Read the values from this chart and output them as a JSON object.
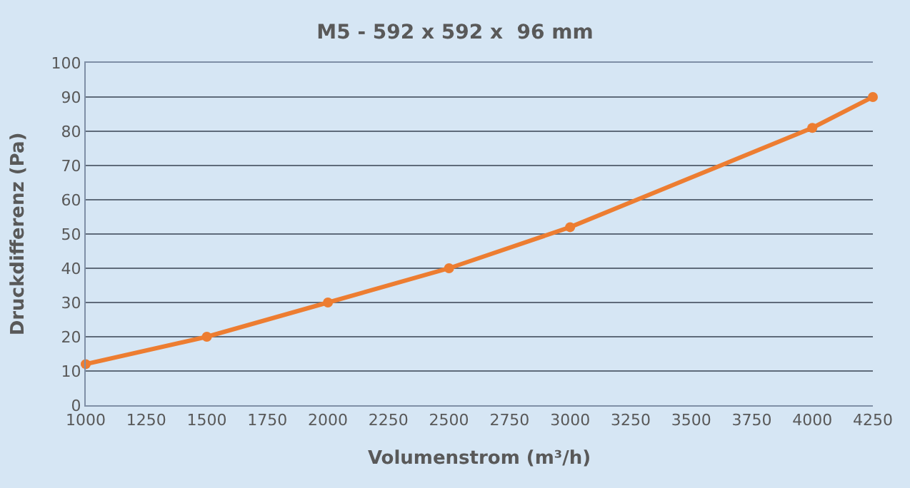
{
  "chart_data": {
    "type": "line",
    "title": "M5 - 592 x 592 x  96 mm",
    "xlabel": "Volumenstrom (m³/h)",
    "ylabel": "Druckdifferenz (Pa)",
    "x": [
      1000,
      1500,
      2000,
      2500,
      3000,
      4000,
      4250
    ],
    "series": [
      {
        "color": "#ed7d31",
        "values": [
          12,
          20,
          30,
          40,
          52,
          81,
          90
        ]
      }
    ],
    "xlim": [
      1000,
      4250
    ],
    "xticks": [
      1000,
      1250,
      1500,
      1750,
      2000,
      2250,
      2500,
      2750,
      3000,
      3250,
      3500,
      3750,
      4000,
      4250
    ],
    "ylim": [
      0,
      100
    ],
    "yticks": [
      0,
      10,
      20,
      30,
      40,
      50,
      60,
      70,
      80,
      90,
      100
    ],
    "grid": "y",
    "marker": "circle",
    "line_style": "solid",
    "legend": false
  }
}
